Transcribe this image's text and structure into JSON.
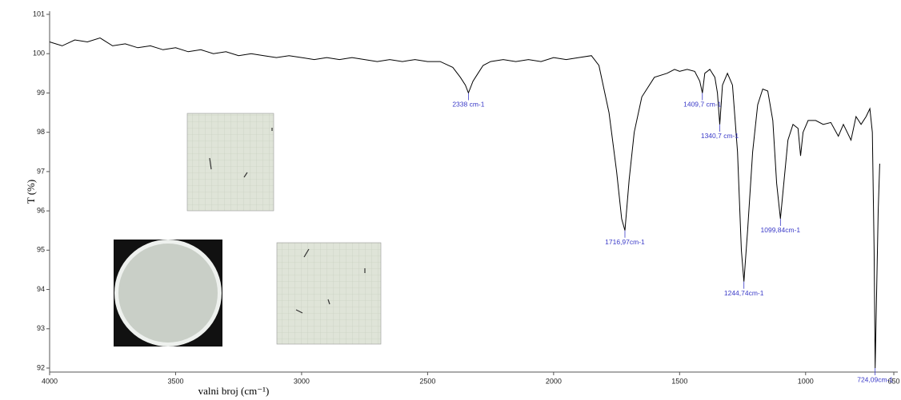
{
  "chart_data": {
    "type": "line",
    "x_label": "valni broj (cm⁻¹)",
    "y_label": "T (%)",
    "color": "#000000",
    "xlim": [
      4000,
      650
    ],
    "ylim": [
      92,
      101
    ],
    "xticks": [
      4000,
      3500,
      3000,
      2500,
      2000,
      1500,
      1000,
      650
    ],
    "yticks": [
      92,
      93,
      94,
      95,
      96,
      97,
      98,
      99,
      100,
      101
    ],
    "x": [
      4000,
      3950,
      3900,
      3850,
      3800,
      3750,
      3700,
      3650,
      3600,
      3550,
      3500,
      3450,
      3400,
      3350,
      3300,
      3250,
      3200,
      3150,
      3100,
      3050,
      3000,
      2950,
      2900,
      2850,
      2800,
      2750,
      2700,
      2650,
      2600,
      2550,
      2500,
      2450,
      2400,
      2370,
      2350,
      2338,
      2320,
      2300,
      2280,
      2250,
      2200,
      2150,
      2100,
      2050,
      2000,
      1950,
      1900,
      1850,
      1820,
      1780,
      1750,
      1730,
      1716.97,
      1700,
      1680,
      1650,
      1600,
      1550,
      1520,
      1500,
      1470,
      1440,
      1420,
      1409.7,
      1400,
      1380,
      1360,
      1350,
      1340.7,
      1330,
      1310,
      1290,
      1270,
      1255,
      1244.74,
      1230,
      1210,
      1190,
      1170,
      1150,
      1130,
      1115,
      1099.84,
      1085,
      1070,
      1050,
      1030,
      1020,
      1010,
      990,
      960,
      930,
      900,
      870,
      850,
      820,
      800,
      780,
      760,
      745,
      735,
      728,
      724.09,
      718,
      712,
      706
    ],
    "values": [
      100.3,
      100.2,
      100.35,
      100.3,
      100.4,
      100.2,
      100.25,
      100.15,
      100.2,
      100.1,
      100.15,
      100.05,
      100.1,
      100.0,
      100.05,
      99.95,
      100.0,
      99.95,
      99.9,
      99.95,
      99.9,
      99.85,
      99.9,
      99.85,
      99.9,
      99.85,
      99.8,
      99.85,
      99.8,
      99.85,
      99.8,
      99.8,
      99.65,
      99.4,
      99.2,
      99.0,
      99.3,
      99.5,
      99.7,
      99.8,
      99.85,
      99.8,
      99.85,
      99.8,
      99.9,
      99.85,
      99.9,
      99.95,
      99.7,
      98.5,
      97.0,
      95.8,
      95.5,
      96.8,
      98.0,
      98.9,
      99.4,
      99.5,
      99.6,
      99.55,
      99.6,
      99.55,
      99.3,
      99.0,
      99.5,
      99.6,
      99.4,
      99.0,
      98.2,
      99.2,
      99.5,
      99.2,
      97.5,
      95.0,
      94.2,
      95.5,
      97.5,
      98.7,
      99.1,
      99.05,
      98.3,
      96.7,
      95.8,
      96.8,
      97.8,
      98.2,
      98.1,
      97.4,
      98.0,
      98.3,
      98.3,
      98.2,
      98.25,
      97.9,
      98.2,
      97.8,
      98.4,
      98.2,
      98.4,
      98.6,
      98.0,
      95.0,
      92.0,
      94.0,
      96.0,
      97.2
    ],
    "annotations": [
      {
        "text": "2338 cm-1",
        "x": 2338,
        "y": 99.0
      },
      {
        "text": "1716,97cm-1",
        "x": 1716.97,
        "y": 95.5
      },
      {
        "text": "1409,7 cm-1",
        "x": 1409.7,
        "y": 99.0
      },
      {
        "text": "1340,7 cm-1",
        "x": 1340.7,
        "y": 98.2
      },
      {
        "text": "1244,74cm-1",
        "x": 1244.74,
        "y": 94.2
      },
      {
        "text": "1099,84cm-1",
        "x": 1099.84,
        "y": 95.8
      },
      {
        "text": "724,09cm-1",
        "x": 724.09,
        "y": 92.0
      }
    ]
  }
}
